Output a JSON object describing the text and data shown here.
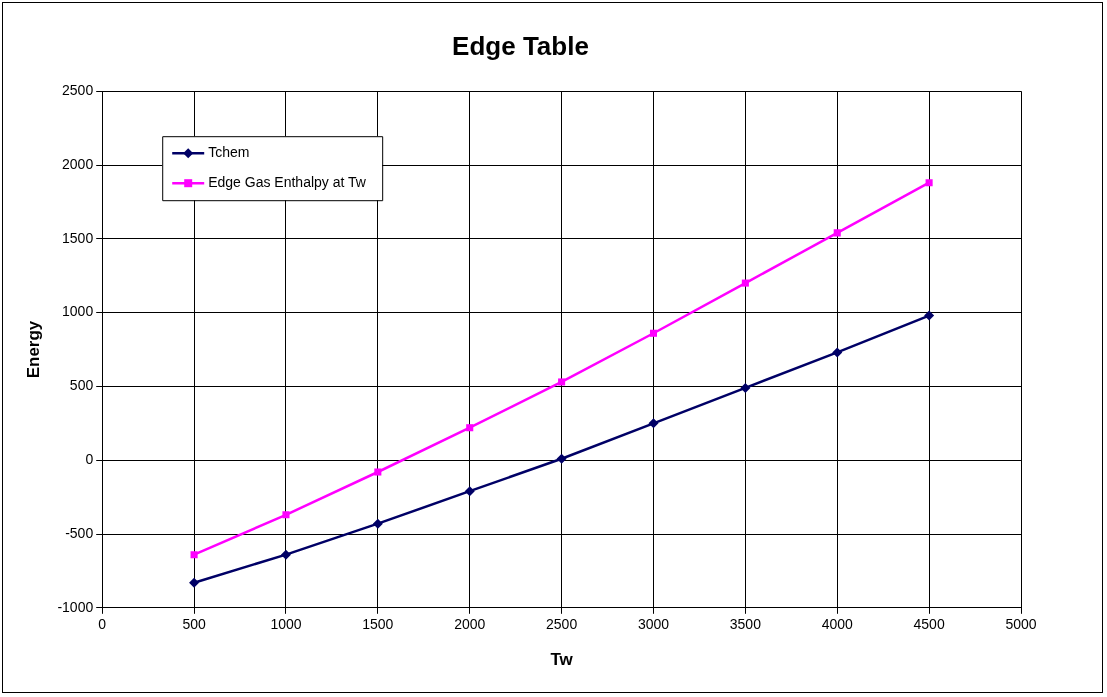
{
  "chart_data": {
    "type": "line",
    "title": "Edge Table",
    "xlabel": "Tw",
    "ylabel": "Energy",
    "x": [
      500,
      1000,
      1500,
      2000,
      2500,
      3000,
      3500,
      4000,
      4500
    ],
    "series": [
      {
        "name": "Tchem",
        "color": "#000066",
        "marker": "diamond",
        "values": [
          -830,
          -640,
          -430,
          -210,
          10,
          250,
          490,
          730,
          980
        ]
      },
      {
        "name": "Edge Gas Enthalpy at Tw",
        "color": "#ff00ff",
        "marker": "square",
        "values": [
          -640,
          -370,
          -80,
          220,
          530,
          860,
          1200,
          1540,
          1880
        ]
      }
    ],
    "xlim": [
      0,
      5000
    ],
    "xticks": [
      0,
      500,
      1000,
      1500,
      2000,
      2500,
      3000,
      3500,
      4000,
      4500,
      5000
    ],
    "ylim": [
      -1000,
      2500
    ],
    "yticks": [
      -1000,
      -500,
      0,
      500,
      1000,
      1500,
      2000,
      2500
    ],
    "grid": true,
    "legend": "top left",
    "line_style": "solid"
  }
}
